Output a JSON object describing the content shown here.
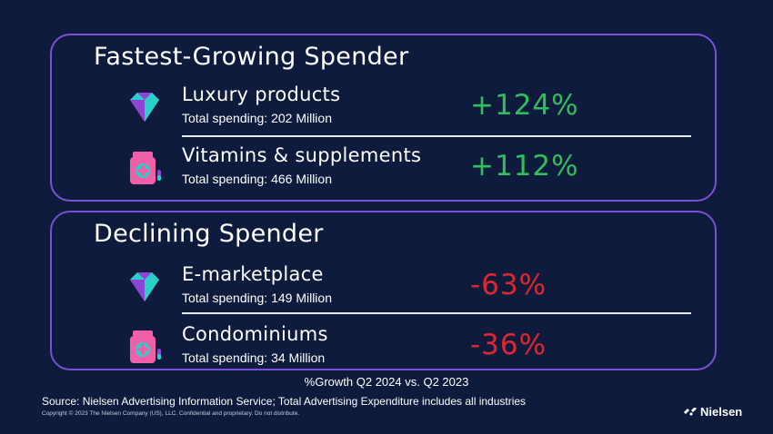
{
  "panels": {
    "growing": {
      "title": "Fastest-Growing Spender",
      "items": [
        {
          "icon": "diamond-icon",
          "label": "Luxury products",
          "sub": "Total spending: 202 Million",
          "pct": "+124%"
        },
        {
          "icon": "supplement-bottle-icon",
          "label": "Vitamins & supplements",
          "sub": "Total spending: 466 Million",
          "pct": "+112%"
        }
      ]
    },
    "declining": {
      "title": "Declining Spender",
      "items": [
        {
          "icon": "diamond-icon",
          "label": "E-marketplace",
          "sub": "Total spending: 149 Million",
          "pct": "-63%"
        },
        {
          "icon": "supplement-bottle-icon",
          "label": "Condominiums",
          "sub": "Total spending: 34 Million",
          "pct": "-36%"
        }
      ]
    }
  },
  "caption": "%Growth Q2 2024 vs. Q2 2023",
  "source": "Source: Nielsen Advertising Information Service; Total Advertising Expenditure includes all industries",
  "copyright": "Copyright © 2023 The Nielsen Company (US), LLC. Confidential and proprietary. Do not distribute.",
  "brand": "Nielsen",
  "colors": {
    "background": "#0f1b3d",
    "panel_border": "#7b4fd6",
    "growth": "#2fbf5b",
    "decline": "#e0262e"
  }
}
